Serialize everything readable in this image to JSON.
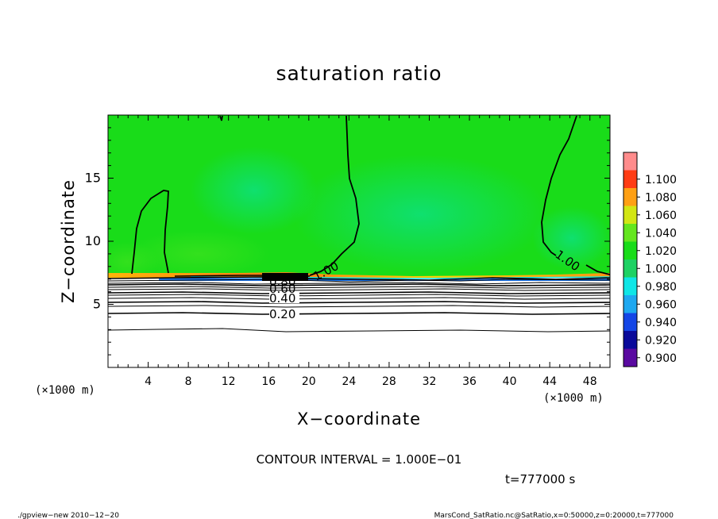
{
  "chart_data": {
    "type": "heatmap",
    "title": "saturation ratio",
    "xlabel": "X−coordinate",
    "ylabel": "Z−coordinate",
    "x_unit_label": "(×1000 m)",
    "y_unit_label": "(×1000 m)",
    "xlim": [
      0,
      50
    ],
    "ylim": [
      0,
      20
    ],
    "x_ticks": [
      4,
      8,
      12,
      16,
      20,
      24,
      28,
      32,
      36,
      40,
      44,
      48
    ],
    "y_ticks": [
      5,
      10,
      15
    ],
    "colorbar": {
      "labels": [
        "0.900",
        "0.920",
        "0.940",
        "0.960",
        "0.980",
        "1.000",
        "1.020",
        "1.040",
        "1.060",
        "1.080",
        "1.100"
      ],
      "colors": [
        "#5a0aa0",
        "#0a0a9a",
        "#1446e6",
        "#1ea8f0",
        "#0fe6e6",
        "#1ed264",
        "#19dc19",
        "#64e61e",
        "#d2e614",
        "#ffa014",
        "#ff3c14",
        "#ff8c8c"
      ]
    },
    "contour_labels": [
      {
        "text": "1.00",
        "x": 22.5,
        "z": 7.7
      },
      {
        "text": "1.00",
        "x": 45.0,
        "z": 8.0
      },
      {
        "text": "0.80",
        "x": 17.6,
        "z": 6.7
      },
      {
        "text": "0.60",
        "x": 17.6,
        "z": 6.1
      },
      {
        "text": "0.40",
        "x": 17.6,
        "z": 5.4
      },
      {
        "text": "0.20",
        "x": 17.6,
        "z": 4.3
      }
    ],
    "contour_interval_text": "CONTOUR INTERVAL = 1.000E−01",
    "time_text": "t=777000 s"
  },
  "footer": {
    "left": "./gpview−new  2010−12−20",
    "right": "MarsCond_SatRatio.nc@SatRatio,x=0:50000,z=0:20000,t=777000"
  }
}
